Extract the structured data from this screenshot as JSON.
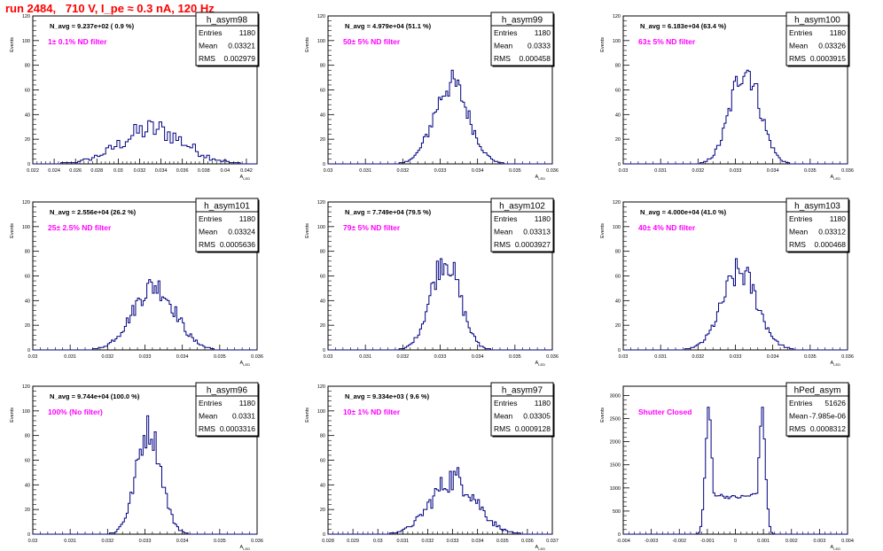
{
  "page": {
    "title": "run 2484,   710 V, I_pe ≈ 0.3 nA, 120 Hz"
  },
  "chart_data": [
    {
      "type": "histogram",
      "name": "h_asym98",
      "navg": "N_avg = 9.237e+02 ( 0.9 %)",
      "filter": "1± 0.1% ND filter",
      "entries": "1180",
      "mean": "0.03321",
      "rms": "0.002979",
      "xlim": [
        0.022,
        0.043
      ],
      "xticks": [
        0.022,
        0.024,
        0.026,
        0.028,
        0.03,
        0.032,
        0.034,
        0.036,
        0.038,
        0.04,
        0.042
      ],
      "xticklabels": [
        "0.022",
        "0.024",
        "0.026",
        "0.028",
        "0.03",
        "0.032",
        "0.034",
        "0.036",
        "0.038",
        "0.04",
        "0.042"
      ],
      "ylim": [
        0,
        120
      ],
      "yticks": [
        0,
        20,
        40,
        60,
        80,
        100,
        120
      ],
      "yticklabels": [
        "0",
        "20",
        "40",
        "60",
        "80",
        "100",
        "120"
      ],
      "xlabel": "A_LED",
      "ylabel": "Events",
      "shape": {
        "kind": "gauss",
        "center": 0.0332,
        "sigma": 0.003,
        "peak": 28,
        "noise": 0.35,
        "bins": 80
      }
    },
    {
      "type": "histogram",
      "name": "h_asym99",
      "navg": "N_avg = 4.979e+04 (51.1 %)",
      "filter": "50± 5% ND filter",
      "entries": "1180",
      "mean": "0.0333",
      "rms": "0.000458",
      "xlim": [
        0.03,
        0.036
      ],
      "xticks": [
        0.03,
        0.031,
        0.032,
        0.033,
        0.034,
        0.035,
        0.036
      ],
      "xticklabels": [
        "0.03",
        "0.031",
        "0.032",
        "0.033",
        "0.034",
        "0.035",
        "0.036"
      ],
      "ylim": [
        0,
        120
      ],
      "yticks": [
        0,
        20,
        40,
        60,
        80,
        100,
        120
      ],
      "yticklabels": [
        "0",
        "20",
        "40",
        "60",
        "80",
        "100",
        "120"
      ],
      "xlabel": "A_LED",
      "ylabel": "Events",
      "shape": {
        "kind": "gauss",
        "center": 0.0333,
        "sigma": 0.00046,
        "peak": 65,
        "noise": 0.18,
        "bins": 120
      }
    },
    {
      "type": "histogram",
      "name": "h_asym100",
      "navg": "N_avg = 6.183e+04 (63.4 %)",
      "filter": "63± 5% ND filter",
      "entries": "1180",
      "mean": "0.03326",
      "rms": "0.0003915",
      "xlim": [
        0.03,
        0.036
      ],
      "xticks": [
        0.03,
        0.031,
        0.032,
        0.033,
        0.034,
        0.035,
        0.036
      ],
      "xticklabels": [
        "0.03",
        "0.031",
        "0.032",
        "0.033",
        "0.034",
        "0.035",
        "0.036"
      ],
      "ylim": [
        0,
        120
      ],
      "yticks": [
        0,
        20,
        40,
        60,
        80,
        100,
        120
      ],
      "yticklabels": [
        "0",
        "20",
        "40",
        "60",
        "80",
        "100",
        "120"
      ],
      "xlabel": "A_LED",
      "ylabel": "Events",
      "shape": {
        "kind": "gauss",
        "center": 0.03326,
        "sigma": 0.00039,
        "peak": 78,
        "noise": 0.18,
        "bins": 120
      }
    },
    {
      "type": "histogram",
      "name": "h_asym101",
      "navg": "N_avg = 2.556e+04 (26.2 %)",
      "filter": "25± 2.5% ND filter",
      "entries": "1180",
      "mean": "0.03324",
      "rms": "0.0005636",
      "xlim": [
        0.03,
        0.036
      ],
      "xticks": [
        0.03,
        0.031,
        0.032,
        0.033,
        0.034,
        0.035,
        0.036
      ],
      "xticklabels": [
        "0.03",
        "0.031",
        "0.032",
        "0.033",
        "0.034",
        "0.035",
        "0.036"
      ],
      "ylim": [
        0,
        120
      ],
      "yticks": [
        0,
        20,
        40,
        60,
        80,
        100,
        120
      ],
      "yticklabels": [
        "0",
        "20",
        "40",
        "60",
        "80",
        "100",
        "120"
      ],
      "xlabel": "A_LED",
      "ylabel": "Events",
      "shape": {
        "kind": "gauss",
        "center": 0.03324,
        "sigma": 0.00056,
        "peak": 52,
        "noise": 0.2,
        "bins": 120
      }
    },
    {
      "type": "histogram",
      "name": "h_asym102",
      "navg": "N_avg = 7.749e+04 (79.5 %)",
      "filter": "79± 5% ND filter",
      "entries": "1180",
      "mean": "0.03313",
      "rms": "0.0003927",
      "xlim": [
        0.03,
        0.036
      ],
      "xticks": [
        0.03,
        0.031,
        0.032,
        0.033,
        0.034,
        0.035,
        0.036
      ],
      "xticklabels": [
        "0.03",
        "0.031",
        "0.032",
        "0.033",
        "0.034",
        "0.035",
        "0.036"
      ],
      "ylim": [
        0,
        120
      ],
      "yticks": [
        0,
        20,
        40,
        60,
        80,
        100,
        120
      ],
      "yticklabels": [
        "0",
        "20",
        "40",
        "60",
        "80",
        "100",
        "120"
      ],
      "xlabel": "A_LED",
      "ylabel": "Events",
      "shape": {
        "kind": "gauss",
        "center": 0.03313,
        "sigma": 0.00039,
        "peak": 74,
        "noise": 0.18,
        "bins": 120
      }
    },
    {
      "type": "histogram",
      "name": "h_asym103",
      "navg": "N_avg = 4.000e+04 (41.0 %)",
      "filter": "40± 4% ND filter",
      "entries": "1180",
      "mean": "0.03312",
      "rms": "0.000468",
      "xlim": [
        0.03,
        0.036
      ],
      "xticks": [
        0.03,
        0.031,
        0.032,
        0.033,
        0.034,
        0.035,
        0.036
      ],
      "xticklabels": [
        "0.03",
        "0.031",
        "0.032",
        "0.033",
        "0.034",
        "0.035",
        "0.036"
      ],
      "ylim": [
        0,
        120
      ],
      "yticks": [
        0,
        20,
        40,
        60,
        80,
        100,
        120
      ],
      "yticklabels": [
        "0",
        "20",
        "40",
        "60",
        "80",
        "100",
        "120"
      ],
      "xlabel": "A_LED",
      "ylabel": "Events",
      "shape": {
        "kind": "gauss",
        "center": 0.03312,
        "sigma": 0.00047,
        "peak": 63,
        "noise": 0.2,
        "bins": 120
      }
    },
    {
      "type": "histogram",
      "name": "h_asym96",
      "navg": "N_avg = 9.744e+04 (100.0 %)",
      "filter": "100% (No filter)",
      "entries": "1180",
      "mean": "0.0331",
      "rms": "0.0003316",
      "xlim": [
        0.03,
        0.036
      ],
      "xticks": [
        0.03,
        0.031,
        0.032,
        0.033,
        0.034,
        0.035,
        0.036
      ],
      "xticklabels": [
        "0.03",
        "0.031",
        "0.032",
        "0.033",
        "0.034",
        "0.035",
        "0.036"
      ],
      "ylim": [
        0,
        120
      ],
      "yticks": [
        0,
        20,
        40,
        60,
        80,
        100,
        120
      ],
      "yticklabels": [
        "0",
        "20",
        "40",
        "60",
        "80",
        "100",
        "120"
      ],
      "xlabel": "A_LED",
      "ylabel": "Events",
      "shape": {
        "kind": "gauss",
        "center": 0.0331,
        "sigma": 0.00033,
        "peak": 85,
        "noise": 0.16,
        "bins": 120
      }
    },
    {
      "type": "histogram",
      "name": "h_asym97",
      "navg": "N_avg = 9.334e+03 ( 9.6 %)",
      "filter": "10± 1% ND filter",
      "entries": "1180",
      "mean": "0.03305",
      "rms": "0.0009128",
      "xlim": [
        0.028,
        0.037
      ],
      "xticks": [
        0.028,
        0.029,
        0.03,
        0.031,
        0.032,
        0.033,
        0.034,
        0.035,
        0.036,
        0.037
      ],
      "xticklabels": [
        "0.028",
        "0.029",
        "0.03",
        "0.031",
        "0.032",
        "0.033",
        "0.034",
        "0.035",
        "0.036",
        "0.037"
      ],
      "ylim": [
        0,
        120
      ],
      "yticks": [
        0,
        20,
        40,
        60,
        80,
        100,
        120
      ],
      "yticklabels": [
        "0",
        "20",
        "40",
        "60",
        "80",
        "100",
        "120"
      ],
      "xlabel": "A_LED",
      "ylabel": "Events",
      "shape": {
        "kind": "gauss",
        "center": 0.03305,
        "sigma": 0.0009,
        "peak": 45,
        "noise": 0.25,
        "bins": 120
      }
    },
    {
      "type": "histogram",
      "name": "hPed_asym",
      "navg": "",
      "filter": "Shutter Closed",
      "entries": "51626",
      "mean": "-7.985e-06",
      "rms": "0.0008312",
      "xlim": [
        -0.004,
        0.004
      ],
      "xticks": [
        -0.004,
        -0.003,
        -0.002,
        -0.001,
        0,
        0.001,
        0.002,
        0.003,
        0.004
      ],
      "xticklabels": [
        "-0.004",
        "-0.003",
        "-0.002",
        "-0.001",
        "0",
        "0.001",
        "0.002",
        "0.003",
        "0.004"
      ],
      "ylim": [
        0,
        3200
      ],
      "yticks": [
        0,
        500,
        1000,
        1500,
        2000,
        2500,
        3000
      ],
      "yticklabels": [
        "0",
        "500",
        "1000",
        "1500",
        "2000",
        "2500",
        "3000"
      ],
      "xlabel": "A_LED",
      "ylabel": "Events",
      "shape": {
        "kind": "double",
        "centers": [
          -0.00095,
          0.00095
        ],
        "sigma": 0.00012,
        "peak": 2900,
        "base": 800,
        "noise": 0.05,
        "bins": 120
      }
    }
  ]
}
